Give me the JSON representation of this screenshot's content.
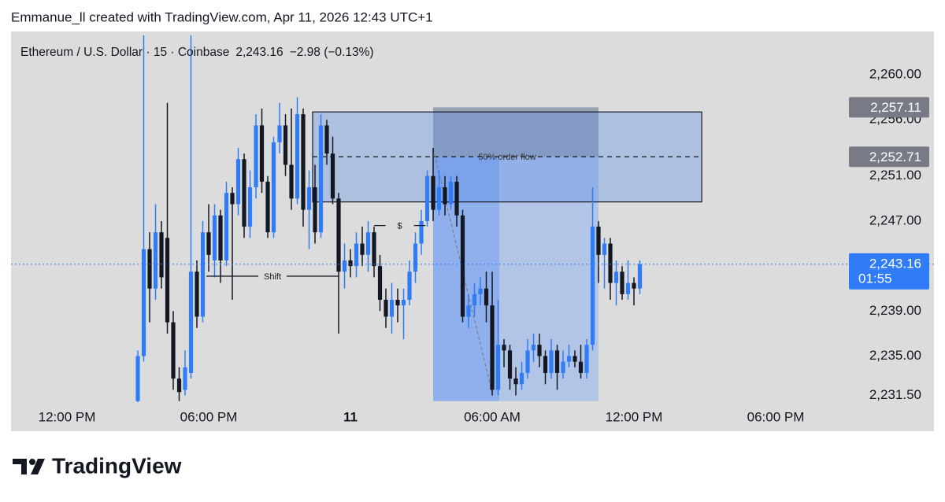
{
  "chart_data": {
    "type": "candlestick",
    "title": "Emmanue_ll created with TradingView.com, Apr 11, 2026 12:43 UTC+1",
    "legend": {
      "symbol": "Ethereum / U.S. Dollar · 15 · Coinbase",
      "last": "2,243.16",
      "change": "−2.98 (−0.13%)"
    },
    "footer": "TradingView",
    "up_color": "#2f7cf6",
    "down_color": "#131722",
    "background": "#dcdcdc",
    "xlim": [
      9.633,
      44.833
    ],
    "ylim": [
      2230.84,
      2263.85
    ],
    "xticks": [
      {
        "value": 12,
        "label": "12:00 PM"
      },
      {
        "value": 18,
        "label": "06:00 PM"
      },
      {
        "value": 24,
        "label": "11"
      },
      {
        "value": 30,
        "label": "06:00 AM"
      },
      {
        "value": 36,
        "label": "12:00 PM"
      },
      {
        "value": 42,
        "label": "06:00 PM"
      }
    ],
    "yticks": [
      {
        "value": 2231.5,
        "label": "2,231.50"
      },
      {
        "value": 2235,
        "label": "2,235.00"
      },
      {
        "value": 2239,
        "label": "2,239.00"
      },
      {
        "value": 2247,
        "label": "2,247.00"
      },
      {
        "value": 2251,
        "label": "2,251.00"
      },
      {
        "value": 2256,
        "label": "2,256.00"
      },
      {
        "value": 2260,
        "label": "2,260.00"
      }
    ],
    "candles": {
      "t": [
        15,
        15.25,
        15.5,
        15.75,
        16,
        16.25,
        16.5,
        16.75,
        17,
        17.25,
        17.5,
        17.75,
        18,
        18.25,
        18.5,
        18.75,
        19,
        19.25,
        19.5,
        19.75,
        20,
        20.25,
        20.5,
        20.75,
        21,
        21.25,
        21.5,
        21.75,
        22,
        22.25,
        22.5,
        22.75,
        23,
        23.25,
        23.5,
        23.75,
        24,
        24.25,
        24.5,
        24.75,
        25,
        25.25,
        25.5,
        25.75,
        26,
        26.25,
        26.5,
        26.75,
        27,
        27.25,
        27.5,
        27.75,
        28,
        28.25,
        28.5,
        28.75,
        29,
        29.25,
        29.5,
        29.75,
        30,
        30.25,
        30.5,
        30.75,
        31,
        31.25,
        31.5,
        31.75,
        32,
        32.25,
        32.5,
        32.75,
        33,
        33.25,
        33.5,
        33.75,
        34,
        34.25,
        34.5,
        34.75,
        35,
        35.25,
        35.5,
        35.75,
        36,
        36.25
      ],
      "open": [
        2231,
        2235,
        2244.5,
        2241,
        2246,
        2245.5,
        2238,
        2233,
        2232,
        2233.5,
        2242.5,
        2238.5,
        2246,
        2243.5,
        2247.5,
        2243.5,
        2249.5,
        2248.5,
        2252.5,
        2246.5,
        2250,
        2255.5,
        2250.5,
        2246,
        2254,
        2255.5,
        2252,
        2249,
        2256.5,
        2248,
        2250,
        2246,
        2255.5,
        2253,
        2249,
        2242.5,
        2243.5,
        2243,
        2245,
        2244,
        2246,
        2243,
        2240,
        2238.5,
        2240,
        2239.5,
        2240,
        2242.5,
        2245,
        2247,
        2251,
        2248,
        2250,
        2248.5,
        2250.5,
        2247.5,
        2238.5,
        2239.5,
        2240.5,
        2241,
        2239.5,
        2232,
        2236,
        2235.5,
        2233,
        2232.5,
        2233.5,
        2235.5,
        2236,
        2235,
        2233.5,
        2235.5,
        2233.5,
        2234.5,
        2235,
        2234.5,
        2233.5,
        2236,
        2246.5,
        2244,
        2245,
        2241.5,
        2242.5,
        2240.5,
        2241.5,
        2241
      ],
      "high": [
        2235.5,
        2263.5,
        2246,
        2248.5,
        2247,
        2257.5,
        2239,
        2234,
        2235.5,
        2263.5,
        2243.5,
        2247,
        2248.5,
        2248.5,
        2248,
        2250.5,
        2250,
        2253.5,
        2253,
        2251.5,
        2256.5,
        2257,
        2251,
        2254.5,
        2257.5,
        2256.5,
        2257,
        2258,
        2257,
        2251.5,
        2252,
        2256.5,
        2256,
        2254.5,
        2249.5,
        2245,
        2244.5,
        2246,
        2246.5,
        2247,
        2246.5,
        2244,
        2241,
        2241.5,
        2241,
        2241,
        2243.5,
        2246,
        2248,
        2251.5,
        2253.5,
        2251.5,
        2251,
        2251,
        2251,
        2248,
        2240.5,
        2241.5,
        2242,
        2242.5,
        2242.5,
        2240,
        2236.5,
        2236,
        2234,
        2234.5,
        2236.5,
        2237,
        2237,
        2235.5,
        2236.5,
        2236,
        2235.5,
        2236,
        2235.5,
        2236,
        2236.5,
        2250,
        2247,
        2245.5,
        2245.5,
        2243.5,
        2243,
        2243.5,
        2242,
        2243.5
      ],
      "low": [
        2230.9,
        2234.5,
        2238,
        2240,
        2241,
        2237,
        2232,
        2231,
        2231.5,
        2233,
        2237.5,
        2238,
        2242.5,
        2242,
        2241.5,
        2243,
        2240,
        2247.5,
        2245.5,
        2245.5,
        2249,
        2249.5,
        2245.5,
        2245.5,
        2253,
        2251,
        2248,
        2248.5,
        2246.5,
        2244.5,
        2245,
        2245.5,
        2252,
        2248.5,
        2237,
        2241,
        2242,
        2242,
        2243,
        2242.5,
        2242,
        2239,
        2237.5,
        2237,
        2238,
        2236.5,
        2239.5,
        2241.5,
        2244,
        2246.5,
        2247,
        2247.5,
        2247.5,
        2248,
        2246.5,
        2238,
        2237.5,
        2238.5,
        2239.5,
        2238,
        2231.5,
        2231.5,
        2234,
        2232,
        2231.5,
        2232,
        2233,
        2234.5,
        2234,
        2232.5,
        2233,
        2232,
        2233,
        2234,
        2234,
        2233,
        2233,
        2235.5,
        2241.5,
        2241,
        2240,
        2239.5,
        2240,
        2240,
        2239.5,
        2240.5
      ],
      "close": [
        2235,
        2244.5,
        2241,
        2246,
        2242,
        2238,
        2233,
        2231.8,
        2234,
        2242.5,
        2238.5,
        2246,
        2244,
        2247.5,
        2243.5,
        2249.5,
        2248.5,
        2252.5,
        2246.5,
        2250,
        2255.5,
        2250.5,
        2246,
        2254,
        2255.5,
        2252,
        2249,
        2256.5,
        2248,
        2250,
        2246,
        2255.5,
        2253,
        2249,
        2242.5,
        2243.5,
        2243,
        2245,
        2244,
        2246,
        2243,
        2240,
        2238.5,
        2240,
        2239.5,
        2240,
        2242.5,
        2245,
        2247,
        2251,
        2248,
        2250,
        2248.5,
        2250.5,
        2247.5,
        2238.5,
        2239.5,
        2240.5,
        2241,
        2239.5,
        2232,
        2236,
        2235.5,
        2233,
        2232.5,
        2233.5,
        2235.5,
        2236,
        2235,
        2233.5,
        2235.5,
        2233.5,
        2234.5,
        2235,
        2234.5,
        2233.5,
        2236,
        2246.5,
        2244,
        2245,
        2241.5,
        2242.5,
        2240.5,
        2241.5,
        2241,
        2243.16
      ]
    },
    "drawings": {
      "range_box": {
        "t0": 27.5,
        "t1": 34.5,
        "top": 2257.11,
        "bottom": 2231.0,
        "split_t": 30.3,
        "split_price": 2252.71
      },
      "order_block": {
        "t0": 22.4,
        "t1": 38.87,
        "top": 2256.7,
        "bottom": 2248.7,
        "mid": 2252.71,
        "label": "50% order flow"
      },
      "shift": {
        "t0": 17.9,
        "t1": 23.5,
        "price": 2242.1,
        "label": "Shift"
      },
      "sweep": {
        "t0": 25.0,
        "t1": 27.17,
        "price": 2246.6,
        "label": "$"
      },
      "swing_line": {
        "t": [
          27.5,
          30
        ],
        "price": [
          2253.4,
          2231.7
        ]
      }
    },
    "price_labels": [
      {
        "value": 2257.11,
        "label": "2,257.11"
      },
      {
        "value": 2252.71,
        "label": "2,252.71"
      }
    ],
    "last_price": {
      "value": 2243.16,
      "label": "2,243.16",
      "countdown": "01:55"
    }
  }
}
